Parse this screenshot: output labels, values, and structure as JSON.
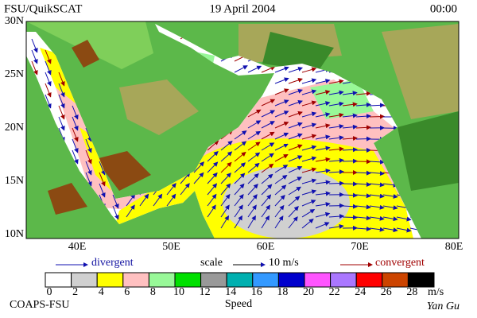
{
  "header": {
    "left": "FSU/QuikSCAT",
    "center": "19 April 2004",
    "right": "00:00"
  },
  "map": {
    "lat_labels": [
      "30N",
      "25N",
      "20N",
      "15N",
      "10N"
    ],
    "lon_labels": [
      "40E",
      "50E",
      "60E",
      "70E",
      "80E"
    ]
  },
  "legend": {
    "divergent": "divergent",
    "scale": "scale",
    "scale_value": "10 m/s",
    "convergent": "convergent"
  },
  "colorbar": {
    "colors": [
      "#ffffff",
      "#d0d0d0",
      "#ffff00",
      "#ffc0c0",
      "#98f898",
      "#00e000",
      "#999999",
      "#00b0b0",
      "#3399ff",
      "#0000cc",
      "#ff55ff",
      "#aa77ff",
      "#ff0000",
      "#cc4400",
      "#000000"
    ],
    "labels": [
      "0",
      "2",
      "4",
      "6",
      "8",
      "10",
      "12",
      "14",
      "16",
      "18",
      "20",
      "22",
      "24",
      "26",
      "28"
    ],
    "unit": "m/s",
    "title": "Speed"
  },
  "footer": {
    "left": "COAPS-FSU",
    "right": "Yan Gu"
  }
}
